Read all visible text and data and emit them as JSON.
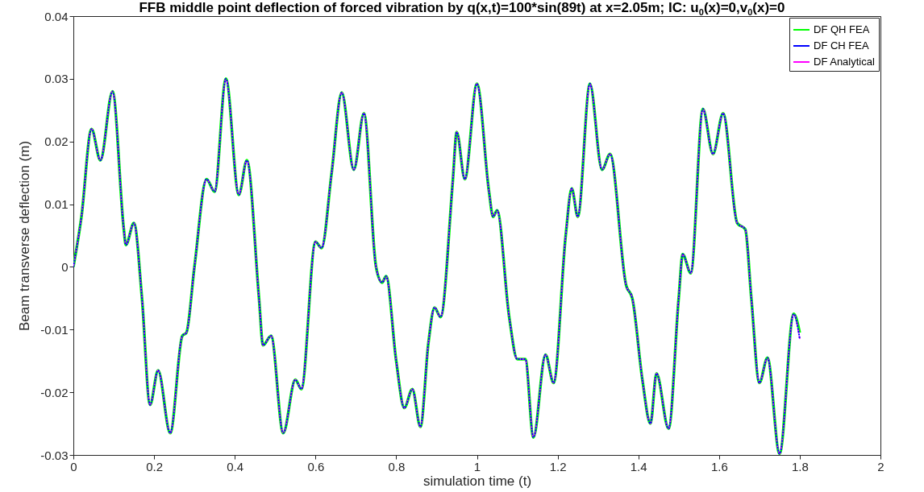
{
  "chart_data": {
    "type": "line",
    "title": "FFB middle point deflection of forced vibration by q(x,t)=100*sin(89t) at x=2.05m; IC: u$_{0}$(x)=0,v$_{0}$(x)=0",
    "xlabel": "simulation time (t)",
    "ylabel": "Beam transverse deflection (m)",
    "x": [
      0,
      0.02,
      0.045,
      0.067,
      0.097,
      0.125,
      0.13,
      0.15,
      0.17,
      0.19,
      0.21,
      0.24,
      0.27,
      0.28,
      0.3,
      0.33,
      0.35,
      0.378,
      0.41,
      0.43,
      0.46,
      0.47,
      0.49,
      0.52,
      0.55,
      0.565,
      0.6,
      0.615,
      0.64,
      0.665,
      0.695,
      0.72,
      0.75,
      0.765,
      0.775,
      0.8,
      0.82,
      0.84,
      0.86,
      0.88,
      0.895,
      0.91,
      0.94,
      0.95,
      0.97,
      1.0,
      1.03,
      1.04,
      1.05,
      1.08,
      1.1,
      1.12,
      1.14,
      1.17,
      1.19,
      1.22,
      1.235,
      1.25,
      1.28,
      1.31,
      1.33,
      1.37,
      1.385,
      1.41,
      1.43,
      1.445,
      1.475,
      1.5,
      1.51,
      1.53,
      1.56,
      1.585,
      1.61,
      1.645,
      1.665,
      1.68,
      1.7,
      1.72,
      1.75,
      1.785,
      1.8
    ],
    "series": [
      {
        "name": "DF QH FEA",
        "color": "#00ff00",
        "line_style": "solid",
        "values": [
          0,
          0.008,
          0.022,
          0.017,
          0.028,
          0.006,
          0.0035,
          0.007,
          -0.005,
          -0.022,
          -0.0165,
          -0.0265,
          -0.011,
          -0.0105,
          0,
          0.014,
          0.012,
          0.03,
          0.0115,
          0.017,
          -0.005,
          -0.0125,
          -0.011,
          -0.0265,
          -0.018,
          -0.0195,
          0.004,
          0.003,
          0.015,
          0.0278,
          0.0155,
          0.0245,
          0,
          -0.0025,
          -0.0015,
          -0.015,
          -0.0225,
          -0.0195,
          -0.0255,
          -0.012,
          -0.0065,
          -0.008,
          0.0135,
          0.0215,
          0.014,
          0.0292,
          0.012,
          0.008,
          0.009,
          -0.008,
          -0.0147,
          -0.0147,
          -0.0272,
          -0.014,
          -0.0185,
          0.005,
          0.0125,
          0.008,
          0.0292,
          0.0155,
          0.018,
          -0.003,
          -0.005,
          -0.018,
          -0.025,
          -0.017,
          -0.0258,
          -0.005,
          0.002,
          -0.001,
          0.0252,
          0.018,
          0.0245,
          0.007,
          0.006,
          -0.005,
          -0.0185,
          -0.0145,
          -0.0298,
          -0.0075,
          -0.0105
        ]
      },
      {
        "name": "DF CH FEA",
        "color": "#0000ff",
        "line_style": "dotted",
        "values": [
          0,
          0.008,
          0.022,
          0.017,
          0.028,
          0.006,
          0.0035,
          0.007,
          -0.005,
          -0.022,
          -0.0165,
          -0.0265,
          -0.011,
          -0.0105,
          0,
          0.014,
          0.012,
          0.03,
          0.0115,
          0.017,
          -0.005,
          -0.0125,
          -0.011,
          -0.0265,
          -0.018,
          -0.0195,
          0.004,
          0.003,
          0.015,
          0.0278,
          0.0155,
          0.0245,
          0,
          -0.0025,
          -0.0015,
          -0.015,
          -0.0225,
          -0.0195,
          -0.0255,
          -0.012,
          -0.0065,
          -0.008,
          0.0135,
          0.0215,
          0.014,
          0.0292,
          0.012,
          0.008,
          0.009,
          -0.008,
          -0.0147,
          -0.0147,
          -0.0272,
          -0.014,
          -0.0185,
          0.005,
          0.0125,
          0.008,
          0.0292,
          0.0155,
          0.018,
          -0.003,
          -0.005,
          -0.018,
          -0.025,
          -0.017,
          -0.0258,
          -0.005,
          0.002,
          -0.001,
          0.0252,
          0.018,
          0.0245,
          0.007,
          0.006,
          -0.005,
          -0.0185,
          -0.0145,
          -0.0298,
          -0.0075,
          -0.0115
        ]
      },
      {
        "name": "DF Analytical",
        "color": "#ff00ff",
        "line_style": "dashed",
        "values": [
          0,
          0.008,
          0.022,
          0.017,
          0.028,
          0.006,
          0.0035,
          0.007,
          -0.005,
          -0.022,
          -0.0165,
          -0.0265,
          -0.011,
          -0.0105,
          0,
          0.014,
          0.012,
          0.03,
          0.0115,
          0.017,
          -0.005,
          -0.0125,
          -0.011,
          -0.0265,
          -0.018,
          -0.0195,
          0.004,
          0.003,
          0.015,
          0.0278,
          0.0155,
          0.0245,
          0,
          -0.0025,
          -0.0015,
          -0.015,
          -0.0225,
          -0.0195,
          -0.0255,
          -0.012,
          -0.0065,
          -0.008,
          0.0135,
          0.0215,
          0.014,
          0.0292,
          0.012,
          0.008,
          0.009,
          -0.008,
          -0.0147,
          -0.0147,
          -0.0272,
          -0.014,
          -0.0185,
          0.005,
          0.0125,
          0.008,
          0.0292,
          0.0155,
          0.018,
          -0.003,
          -0.005,
          -0.018,
          -0.025,
          -0.017,
          -0.0258,
          -0.005,
          0.002,
          -0.001,
          0.0252,
          0.018,
          0.0245,
          0.007,
          0.006,
          -0.005,
          -0.0185,
          -0.0145,
          -0.0298,
          -0.0075,
          -0.0115
        ]
      }
    ],
    "xlim": [
      0,
      2
    ],
    "xticks": [
      0,
      0.2,
      0.4,
      0.6,
      0.8,
      1,
      1.2,
      1.4,
      1.6,
      1.8,
      2
    ],
    "ylim": [
      -0.03,
      0.04
    ],
    "yticks": [
      -0.03,
      -0.02,
      -0.01,
      0,
      0.01,
      0.02,
      0.03,
      0.04
    ],
    "legend": "top right"
  }
}
